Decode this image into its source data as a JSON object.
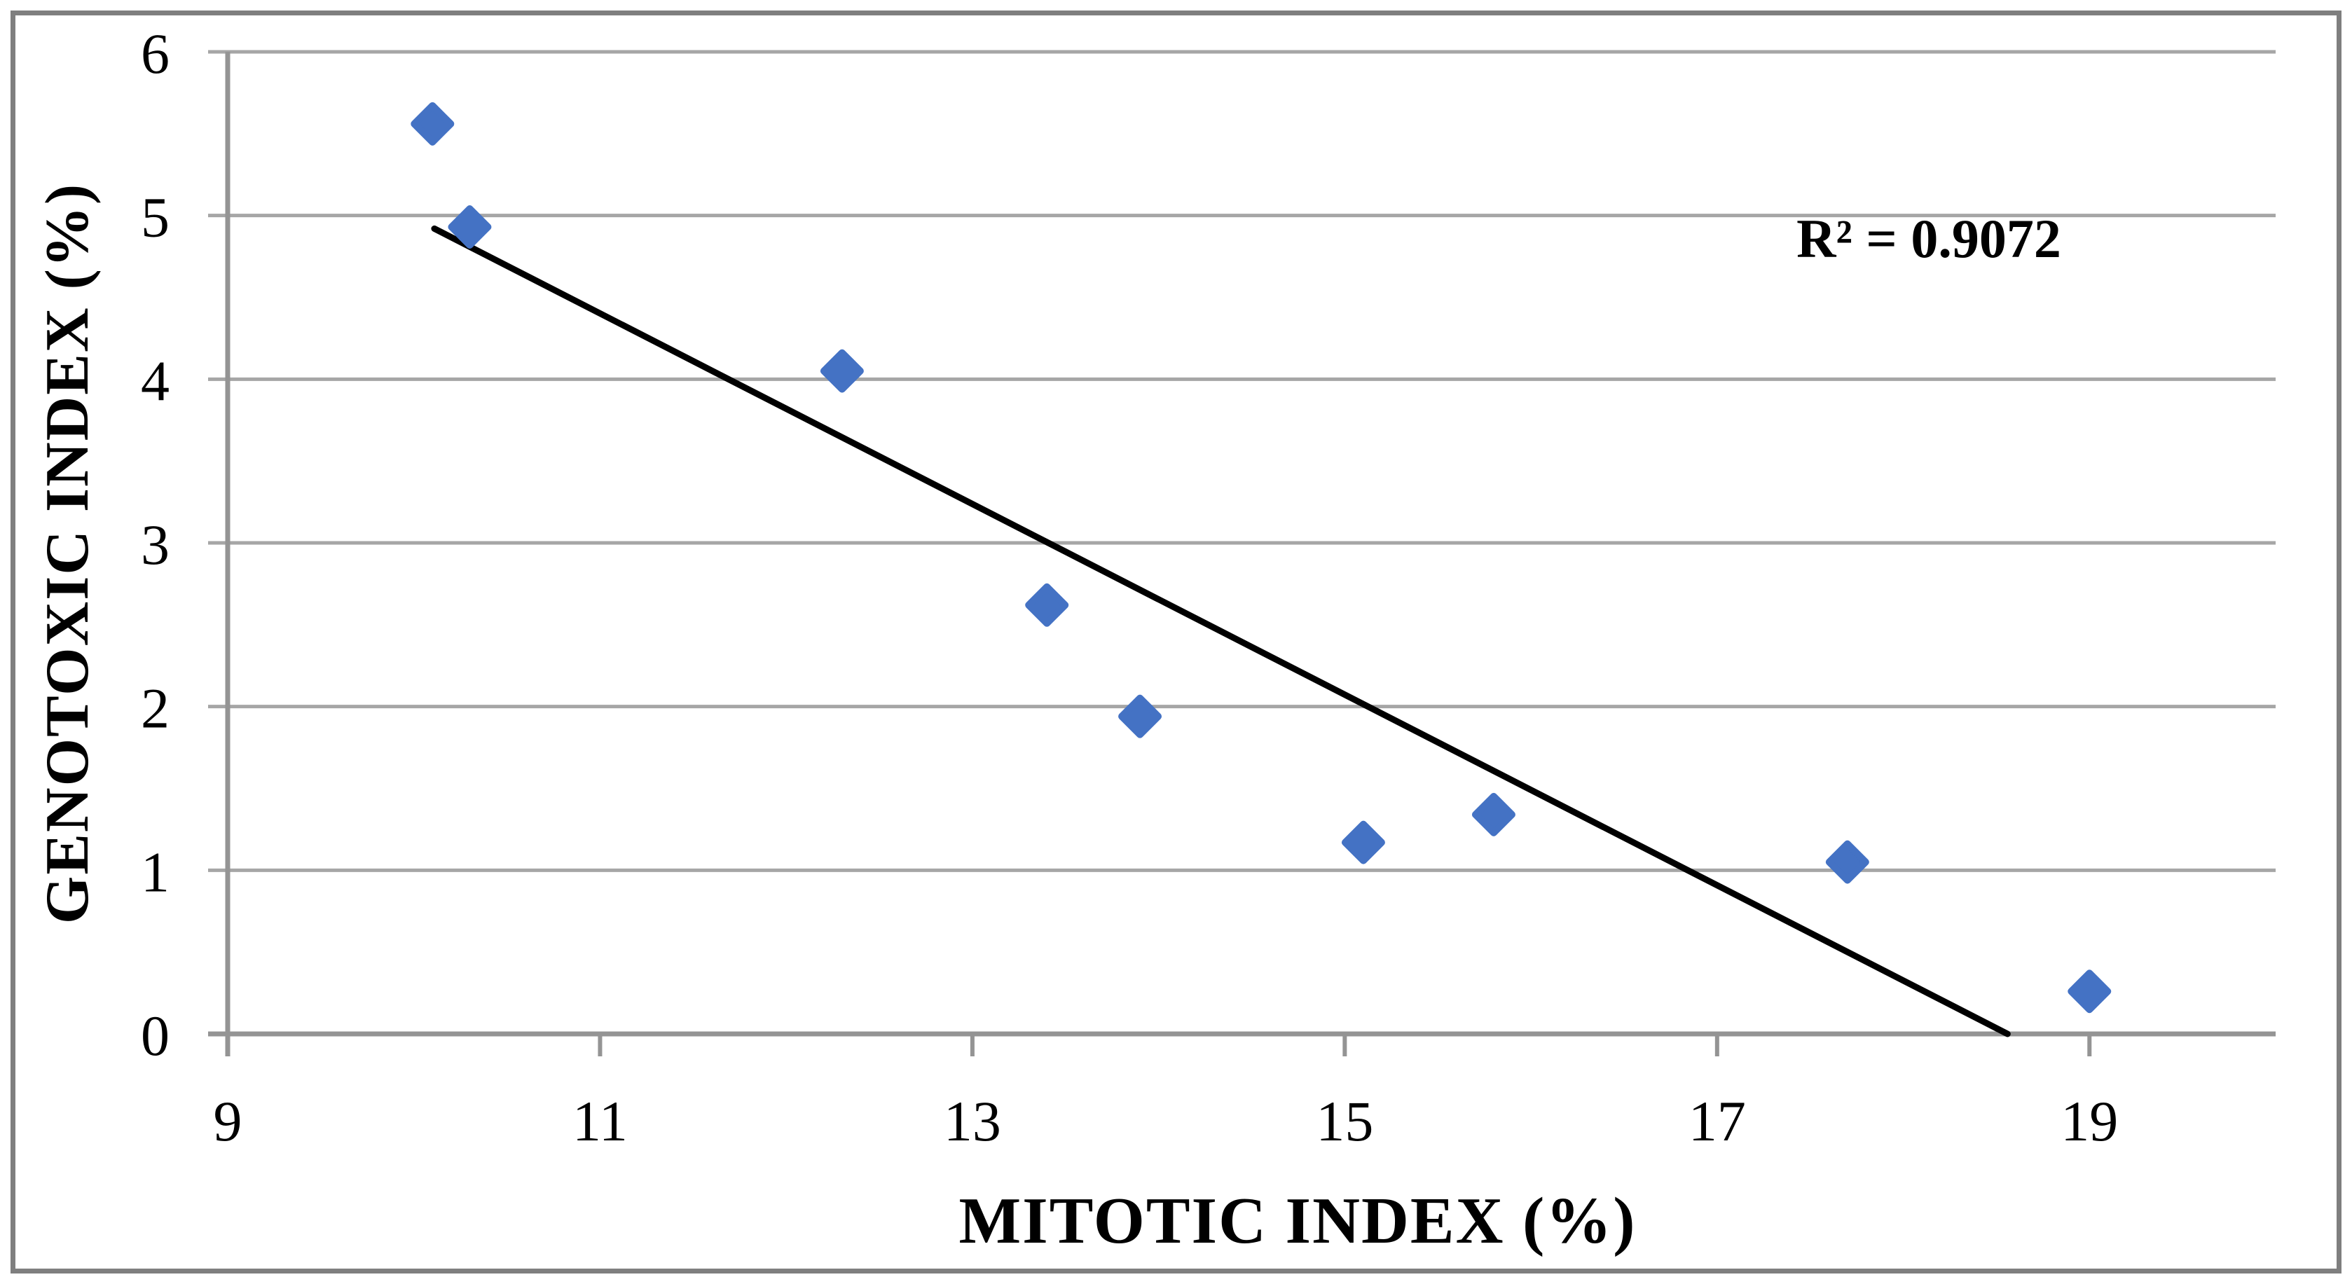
{
  "chart_data": {
    "type": "scatter",
    "xlabel": "MITOTIC INDEX (%)",
    "ylabel": "GENOTOXIC INDEX (%)",
    "r2_label": "R² = 0.9072",
    "r2_value": 0.9072,
    "xlim": [
      9,
      20
    ],
    "ylim": [
      0,
      6
    ],
    "x_ticks": [
      9,
      11,
      13,
      15,
      17,
      19
    ],
    "y_ticks": [
      0,
      1,
      2,
      3,
      4,
      5,
      6
    ],
    "grid": "horizontal",
    "legend": "none",
    "marker": "diamond",
    "colors": {
      "marker": "#4472C4",
      "trendline": "#000000",
      "gridline": "#A6A6A6",
      "axis": "#949494",
      "frame": "#7F7F7F",
      "background": "#FFFFFF",
      "text": "#000000"
    },
    "points": [
      {
        "x": 10.1,
        "y": 5.56
      },
      {
        "x": 10.3,
        "y": 4.93
      },
      {
        "x": 12.3,
        "y": 4.05
      },
      {
        "x": 13.4,
        "y": 2.62
      },
      {
        "x": 13.9,
        "y": 1.94
      },
      {
        "x": 15.1,
        "y": 1.17
      },
      {
        "x": 15.8,
        "y": 1.34
      },
      {
        "x": 17.7,
        "y": 1.05
      },
      {
        "x": 19.0,
        "y": 0.26
      }
    ],
    "trendline": {
      "x1": 10.11,
      "y1": 4.92,
      "x2": 18.56,
      "y2": 0.0
    }
  }
}
